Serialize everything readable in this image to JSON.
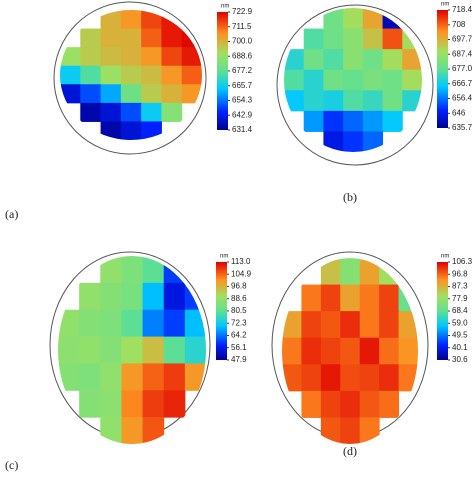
{
  "chart_data": [
    {
      "type": "wafer-map",
      "label": "(a)",
      "unit": "nm",
      "zlim": [
        631.4,
        722.9
      ],
      "colorbar_ticks": [
        722.9,
        711.5,
        {
          "value": 700,
          "label": "700.0"
        },
        688.6,
        677.2,
        665.7,
        654.3,
        642.9,
        631.4
      ],
      "grid": [
        [
          null,
          null,
          700,
          705,
          715,
          720,
          null
        ],
        [
          null,
          695,
          700,
          700,
          712,
          720,
          722
        ],
        [
          690,
          695,
          698,
          700,
          705,
          715,
          720
        ],
        [
          665,
          675,
          690,
          695,
          698,
          705,
          712
        ],
        [
          640,
          650,
          660,
          680,
          695,
          700,
          705
        ],
        [
          null,
          635,
          640,
          650,
          665,
          685,
          null
        ],
        [
          null,
          null,
          635,
          640,
          645,
          null,
          null
        ]
      ]
    },
    {
      "type": "wafer-map",
      "label": "(b)",
      "unit": "nm",
      "zlim": [
        635.7,
        718.4
      ],
      "colorbar_ticks": [
        718.4,
        708.0,
        697.7,
        687.4,
        {
          "value": 677,
          "label": "677.0"
        },
        666.7,
        656.4,
        646.0,
        635.7
      ],
      "grid": [
        [
          null,
          null,
          680,
          690,
          700,
          640,
          null
        ],
        [
          null,
          675,
          680,
          685,
          695,
          710,
          690
        ],
        [
          670,
          680,
          675,
          685,
          680,
          690,
          700
        ],
        [
          675,
          670,
          680,
          678,
          682,
          680,
          690
        ],
        [
          665,
          670,
          668,
          675,
          672,
          680,
          670
        ],
        [
          null,
          660,
          650,
          655,
          660,
          665,
          null
        ],
        [
          null,
          null,
          645,
          650,
          655,
          null,
          null
        ]
      ]
    },
    {
      "type": "wafer-map",
      "label": "(c)",
      "unit": "nm",
      "zlim": [
        47.9,
        113
      ],
      "colorbar_ticks": [
        {
          "value": 113,
          "label": "113.0"
        },
        104.9,
        96.8,
        88.6,
        80.5,
        72.3,
        64.2,
        56.1,
        47.9
      ],
      "grid": [
        [
          null,
          null,
          88,
          85,
          80,
          60,
          null
        ],
        [
          null,
          88,
          86,
          84,
          70,
          55,
          60
        ],
        [
          88,
          86,
          85,
          80,
          65,
          60,
          70
        ],
        [
          87,
          88,
          86,
          90,
          95,
          80,
          75
        ],
        [
          86,
          85,
          88,
          100,
          105,
          108,
          100
        ],
        [
          null,
          86,
          87,
          102,
          108,
          110,
          null
        ],
        [
          null,
          null,
          88,
          100,
          106,
          null,
          null
        ]
      ]
    },
    {
      "type": "wafer-map",
      "label": "(d)",
      "unit": "nm",
      "zlim": [
        30.6,
        106.3
      ],
      "colorbar_ticks": [
        106.3,
        96.8,
        87.3,
        77.9,
        68.4,
        {
          "value": 59,
          "label": "59.0"
        },
        49.5,
        40.1,
        30.6
      ],
      "grid": [
        [
          null,
          null,
          85,
          75,
          90,
          80,
          null
        ],
        [
          null,
          95,
          100,
          90,
          95,
          100,
          70
        ],
        [
          90,
          100,
          98,
          102,
          95,
          100,
          90
        ],
        [
          95,
          102,
          100,
          98,
          104,
          96,
          92
        ],
        [
          98,
          100,
          104,
          99,
          100,
          102,
          95
        ],
        [
          null,
          95,
          100,
          102,
          98,
          96,
          null
        ],
        [
          null,
          null,
          98,
          100,
          95,
          null,
          null
        ]
      ]
    }
  ]
}
